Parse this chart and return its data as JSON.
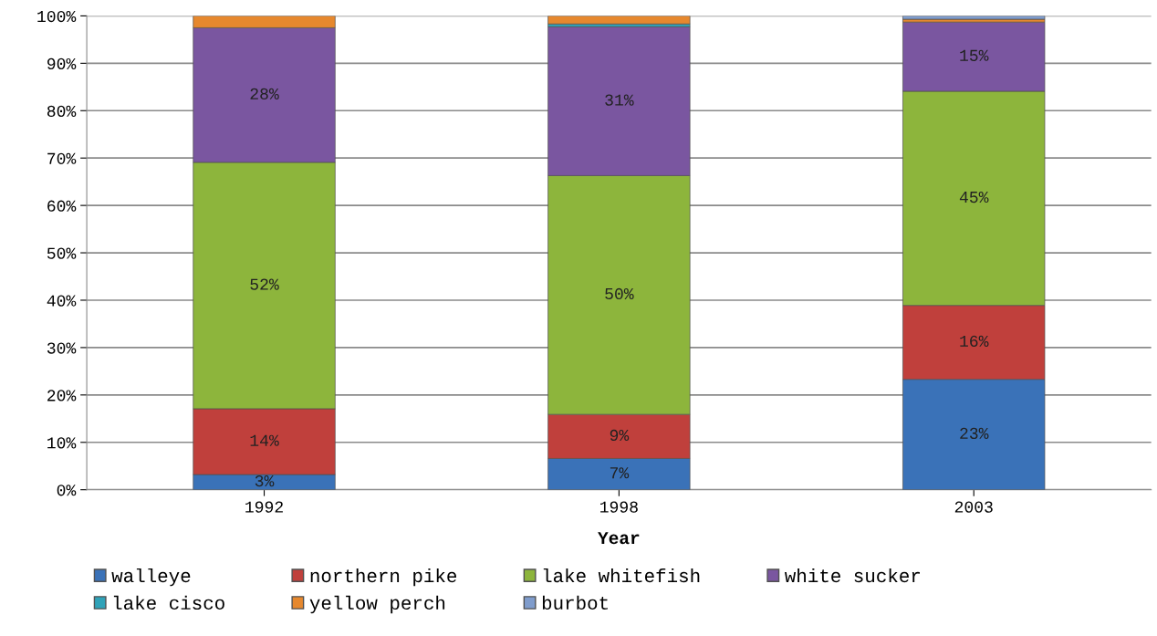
{
  "chart_data": {
    "type": "bar",
    "stacked": true,
    "xlabel": "Year",
    "categories": [
      "1992",
      "1998",
      "2003"
    ],
    "ylim": [
      0,
      100
    ],
    "yticks": [
      {
        "value": 0,
        "label": "0%"
      },
      {
        "value": 10,
        "label": "10%"
      },
      {
        "value": 20,
        "label": "20%"
      },
      {
        "value": 30,
        "label": "30%"
      },
      {
        "value": 40,
        "label": "40%"
      },
      {
        "value": 50,
        "label": "50%"
      },
      {
        "value": 60,
        "label": "60%"
      },
      {
        "value": 70,
        "label": "70%"
      },
      {
        "value": 80,
        "label": "80%"
      },
      {
        "value": 90,
        "label": "90%"
      },
      {
        "value": 100,
        "label": "100%"
      }
    ],
    "grid": "y",
    "legend": "bottom",
    "series": [
      {
        "name": "walleye",
        "color": "#3a72b8",
        "values": [
          3.2,
          6.6,
          23.3
        ],
        "value_labels": [
          "3%",
          "7%",
          "23%"
        ]
      },
      {
        "name": "northern pike",
        "color": "#c0403c",
        "values": [
          13.9,
          9.3,
          15.6
        ],
        "value_labels": [
          "14%",
          "9%",
          "16%"
        ]
      },
      {
        "name": "lake whitefish",
        "color": "#8db53c",
        "values": [
          52.0,
          50.4,
          45.2
        ],
        "value_labels": [
          "52%",
          "50%",
          "45%"
        ]
      },
      {
        "name": "white sucker",
        "color": "#7a56a0",
        "values": [
          28.4,
          31.4,
          14.6
        ],
        "value_labels": [
          "28%",
          "31%",
          "15%"
        ]
      },
      {
        "name": "lake cisco",
        "color": "#2fa2b8",
        "values": [
          0,
          0.6,
          0
        ],
        "value_labels": [
          null,
          null,
          null
        ]
      },
      {
        "name": "yellow perch",
        "color": "#e6882e",
        "values": [
          2.5,
          1.7,
          0.6
        ],
        "value_labels": [
          null,
          null,
          null
        ]
      },
      {
        "name": "burbot",
        "color": "#7f9ccc",
        "values": [
          0,
          0,
          0.7
        ],
        "value_labels": [
          null,
          null,
          null
        ]
      }
    ]
  }
}
